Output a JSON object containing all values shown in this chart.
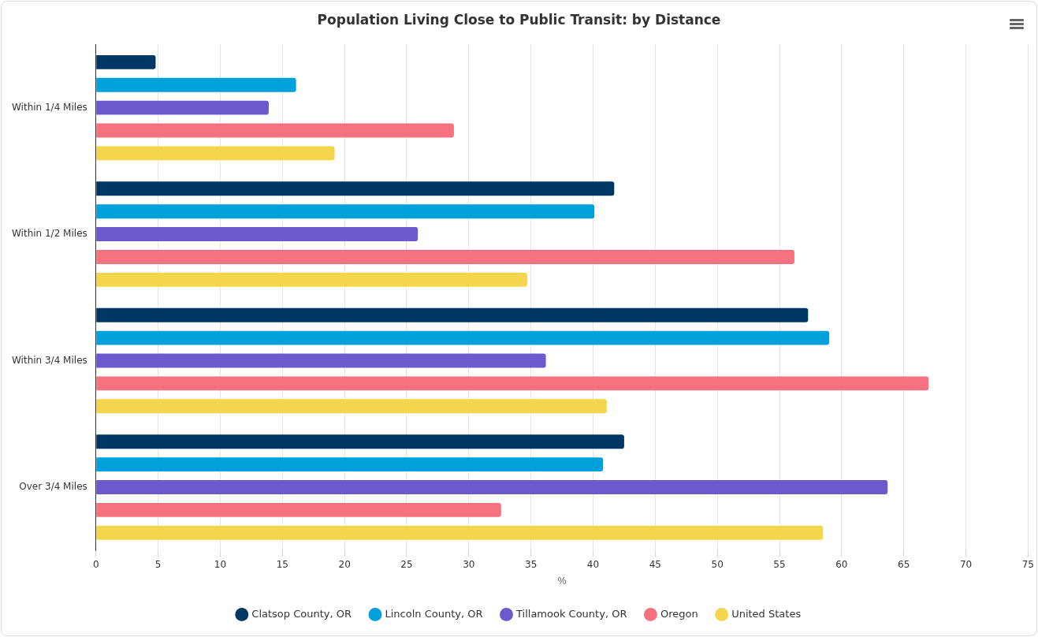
{
  "chart_data": {
    "type": "bar",
    "orientation": "horizontal",
    "title": "Population Living Close to Public Transit: by Distance",
    "xlabel": "%",
    "categories": [
      "Within 1/4 Miles",
      "Within 1/2 Miles",
      "Within 3/4 Miles",
      "Over 3/4 Miles"
    ],
    "series": [
      {
        "name": "Clatsop County, OR",
        "color": "#003764",
        "values": [
          4.8,
          41.7,
          57.3,
          42.5
        ]
      },
      {
        "name": "Lincoln County, OR",
        "color": "#00a0dc",
        "values": [
          16.1,
          40.1,
          59.0,
          40.8
        ]
      },
      {
        "name": "Tillamook County, OR",
        "color": "#6a5acd",
        "values": [
          13.9,
          25.9,
          36.2,
          63.7
        ]
      },
      {
        "name": "Oregon",
        "color": "#f67280",
        "values": [
          28.8,
          56.2,
          67.0,
          32.6
        ]
      },
      {
        "name": "United States",
        "color": "#f4d64e",
        "values": [
          19.2,
          34.7,
          41.1,
          58.5
        ]
      }
    ],
    "xlim": [
      0,
      75
    ],
    "xticks": [
      0,
      5,
      10,
      15,
      20,
      25,
      30,
      35,
      40,
      45,
      50,
      55,
      60,
      65,
      70,
      75
    ],
    "grid": "x",
    "legend": "bottom"
  }
}
